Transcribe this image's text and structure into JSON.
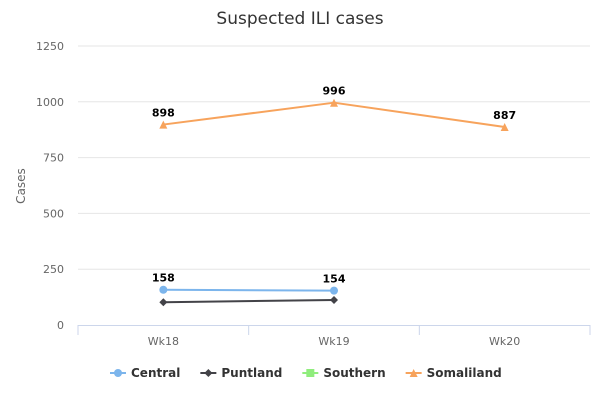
{
  "chart_data": {
    "type": "line",
    "title": "Suspected ILI cases",
    "xlabel": "",
    "ylabel": "Cases",
    "categories": [
      "Wk18",
      "Wk19",
      "Wk20"
    ],
    "yticks": [
      0,
      250,
      500,
      750,
      1000,
      1250
    ],
    "ylim": [
      0,
      1250
    ],
    "grid": true,
    "legend_position": "bottom",
    "series": [
      {
        "name": "Central",
        "color": "#7cb5ec",
        "marker": "circle",
        "values": [
          158,
          154,
          null
        ],
        "labels": [
          "158",
          "154",
          null
        ]
      },
      {
        "name": "Puntland",
        "color": "#434348",
        "marker": "diamond",
        "values": [
          102,
          112,
          null
        ],
        "labels": [
          null,
          null,
          null
        ]
      },
      {
        "name": "Southern",
        "color": "#90ed7d",
        "marker": "square",
        "values": [
          null,
          null,
          null
        ],
        "labels": [
          null,
          null,
          null
        ]
      },
      {
        "name": "Somaliland",
        "color": "#f7a35c",
        "marker": "triangle",
        "values": [
          898,
          996,
          887
        ],
        "labels": [
          "898",
          "996",
          "887"
        ]
      }
    ]
  }
}
